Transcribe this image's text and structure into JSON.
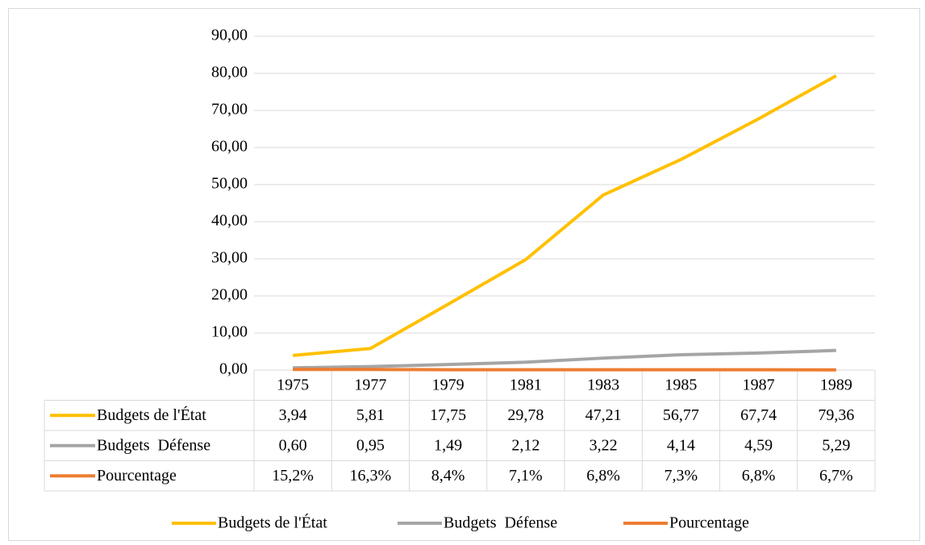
{
  "chart_data": {
    "type": "line",
    "categories": [
      "1975",
      "1977",
      "1979",
      "1981",
      "1983",
      "1985",
      "1987",
      "1989"
    ],
    "series": [
      {
        "name": "Budgets de l'État",
        "color": "#FFC000",
        "values": [
          3.94,
          5.81,
          17.75,
          29.78,
          47.21,
          56.77,
          67.74,
          79.36
        ],
        "value_labels": [
          "3,94",
          "5,81",
          "17,75",
          "29,78",
          "47,21",
          "56,77",
          "67,74",
          "79,36"
        ]
      },
      {
        "name": "Budgets  Défense",
        "color": "#A5A5A5",
        "values": [
          0.6,
          0.95,
          1.49,
          2.12,
          3.22,
          4.14,
          4.59,
          5.29
        ],
        "value_labels": [
          "0,60",
          "0,95",
          "1,49",
          "2,12",
          "3,22",
          "4,14",
          "4,59",
          "5,29"
        ]
      },
      {
        "name": "Pourcentage",
        "color": "#ED7D31",
        "values": [
          0.152,
          0.163,
          0.084,
          0.071,
          0.068,
          0.073,
          0.068,
          0.067
        ],
        "value_labels": [
          "15,2%",
          "16,3%",
          "8,4%",
          "7,1%",
          "6,8%",
          "7,3%",
          "6,8%",
          "6,7%"
        ]
      }
    ],
    "ylim": [
      0,
      90
    ],
    "yticks": [
      {
        "value": 0,
        "label": "0,00"
      },
      {
        "value": 10,
        "label": "10,00"
      },
      {
        "value": 20,
        "label": "20,00"
      },
      {
        "value": 30,
        "label": "30,00"
      },
      {
        "value": 40,
        "label": "40,00"
      },
      {
        "value": 50,
        "label": "50,00"
      },
      {
        "value": 60,
        "label": "60,00"
      },
      {
        "value": 70,
        "label": "70,00"
      },
      {
        "value": 80,
        "label": "80,00"
      },
      {
        "value": 90,
        "label": "90,00"
      }
    ],
    "grid": true,
    "legend": "bottom"
  }
}
